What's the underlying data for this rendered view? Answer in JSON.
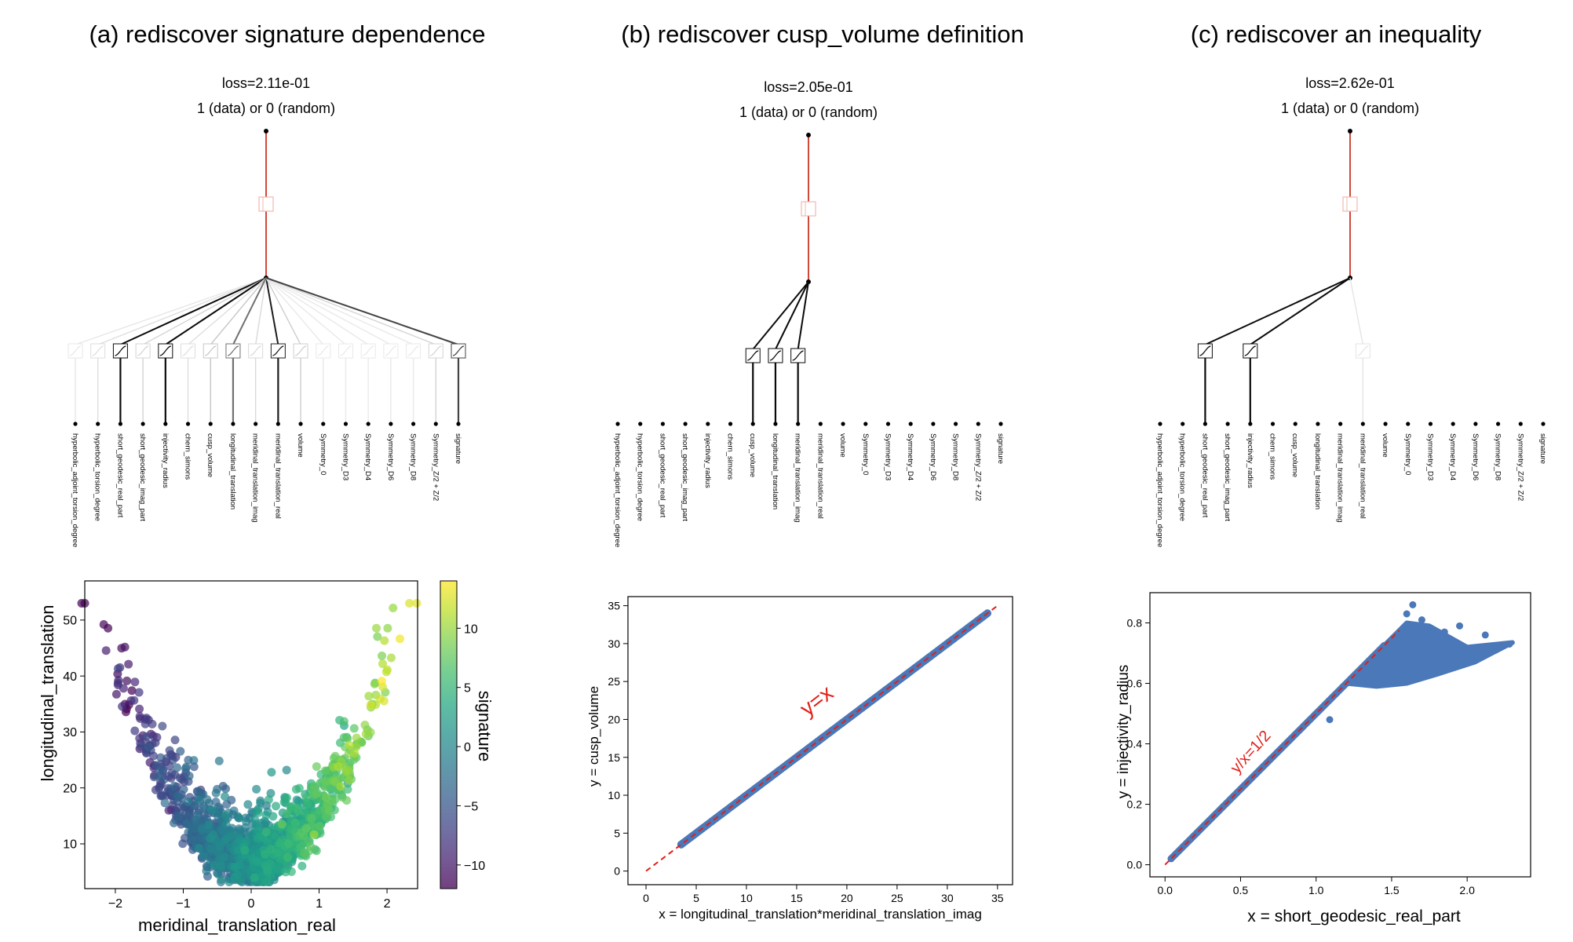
{
  "figure_panels": [
    {
      "title": "(a) rediscover signature dependence",
      "kan": {
        "loss": "loss=2.11e-01",
        "output": "1 (data) or 0 (random)",
        "inputs": [
          "hyperbolic_adjoint_torsion_degree",
          "hyperbolic_torsion_degree",
          "short_geodesic_real_part",
          "short_geodesic_imag_part",
          "injectivity_radius",
          "chern_simons",
          "cusp_volume",
          "longitudinal_translation",
          "meridinal_translation_imag",
          "meridinal_translation_real",
          "volume",
          "Symmetry_0",
          "Symmetry_D3",
          "Symmetry_D4",
          "Symmetry_D6",
          "Symmetry_D8",
          "Symmetry_Z/2 + Z/2",
          "signature"
        ],
        "weights": [
          0.04,
          0.08,
          1.0,
          0.12,
          1.0,
          0.08,
          0.18,
          0.55,
          0.1,
          0.92,
          0.15,
          0.03,
          0.03,
          0.03,
          0.03,
          0.03,
          0.12,
          0.75
        ]
      }
    },
    {
      "title": "(b) rediscover cusp_volume definition",
      "kan": {
        "loss": "loss=2.05e-01",
        "output": "1 (data) or 0 (random)",
        "inputs": [
          "hyperbolic_adjoint_torsion_degree",
          "hyperbolic_torsion_degree",
          "short_geodesic_real_part",
          "short_geodesic_imag_part",
          "injectivity_radius",
          "chern_simons",
          "cusp_volume",
          "longitudinal_translation",
          "meridinal_translation_imag",
          "meridinal_translation_real",
          "volume",
          "Symmetry_0",
          "Symmetry_D3",
          "Symmetry_D4",
          "Symmetry_D6",
          "Symmetry_D8",
          "Symmetry_Z/2 + Z/2",
          "signature"
        ],
        "weights": [
          0,
          0,
          0,
          0,
          0,
          0,
          1.0,
          1.0,
          1.0,
          0,
          0,
          0,
          0,
          0,
          0,
          0,
          0,
          0
        ]
      }
    },
    {
      "title": "(c) rediscover an inequality",
      "kan": {
        "loss": "loss=2.62e-01",
        "output": "1 (data) or 0 (random)",
        "inputs": [
          "hyperbolic_adjoint_torsion_degree",
          "hyperbolic_torsion_degree",
          "short_geodesic_real_part",
          "short_geodesic_imag_part",
          "injectivity_radius",
          "chern_simons",
          "cusp_volume",
          "longitudinal_translation",
          "meridinal_translation_imag",
          "meridinal_translation_real",
          "volume",
          "Symmetry_0",
          "Symmetry_D3",
          "Symmetry_D4",
          "Symmetry_D6",
          "Symmetry_D8",
          "Symmetry_Z/2 + Z/2",
          "signature"
        ],
        "weights": [
          0,
          0,
          1.0,
          0,
          1.0,
          0,
          0,
          0,
          0,
          0.05,
          0,
          0,
          0,
          0,
          0,
          0,
          0,
          0
        ]
      }
    }
  ],
  "colors": {
    "edge_top": "#d1493a",
    "scatter_blue": "#4a78b8",
    "fit_line": "#e0201a"
  },
  "chart_data": [
    {
      "type": "scatter",
      "xlabel": "meridinal_translation_real",
      "ylabel": "longitudinal_translation",
      "xlim": [
        -2.45,
        2.45
      ],
      "ylim": [
        2,
        57
      ],
      "xticks": [
        "-2",
        "-1",
        "0",
        "1",
        "2"
      ],
      "yticks": [
        "10",
        "20",
        "30",
        "40",
        "50"
      ],
      "colorbar": {
        "label": "signature",
        "range": [
          -12,
          14
        ],
        "ticks": [
          "-10",
          "-5",
          "0",
          "5",
          "10"
        ],
        "colormap": "viridis"
      },
      "description_points": "U-shaped cloud: y ≈ 4 + 9·x² with spread; color rises with x"
    },
    {
      "type": "scatter",
      "xlabel": "x = longitudinal_translation*meridinal_translation_imag",
      "ylabel": "y = cusp_volume",
      "xlim": [
        -1.8,
        36.5
      ],
      "ylim": [
        -1.8,
        36.2
      ],
      "xticks": [
        "0",
        "5",
        "10",
        "15",
        "20",
        "25",
        "30",
        "35"
      ],
      "yticks": [
        "0",
        "5",
        "10",
        "15",
        "20",
        "25",
        "30",
        "35"
      ],
      "points_x_range": [
        3.5,
        34
      ],
      "fit_line": {
        "label": "y=x",
        "from": [
          0,
          0
        ],
        "to": [
          35,
          35
        ]
      }
    },
    {
      "type": "scatter",
      "xlabel": "x = short_geodesic_real_part",
      "ylabel": "y = injectivity_radius",
      "xlim": [
        -0.1,
        2.42
      ],
      "ylim": [
        -0.04,
        0.9
      ],
      "xticks": [
        "0.0",
        "0.5",
        "1.0",
        "1.5",
        "2.0"
      ],
      "yticks": [
        "0.0",
        "0.2",
        "0.4",
        "0.6",
        "0.8"
      ],
      "fit_line": {
        "label": "y/x=1/2",
        "from": [
          0,
          0
        ],
        "to": [
          1.55,
          0.775
        ]
      },
      "envelope": {
        "x_break": 1.45,
        "x_max": 2.3
      }
    }
  ]
}
